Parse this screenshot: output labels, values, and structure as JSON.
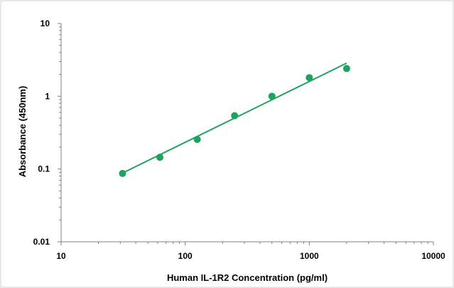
{
  "chart_data": {
    "type": "scatter",
    "title": "",
    "xlabel": "Human IL-1R2 Concentration (pg/ml)",
    "ylabel": "Absorbance (450nm)",
    "x_scale": "log",
    "y_scale": "log",
    "xlim": [
      10,
      10000
    ],
    "ylim": [
      0.01,
      10
    ],
    "x_ticks": [
      "10",
      "100",
      "1000",
      "10000"
    ],
    "y_ticks": [
      "10",
      "1",
      "0.1",
      "0.01"
    ],
    "grid": false,
    "legend": "none",
    "series": [
      {
        "x": [
          31.25,
          62.5,
          125,
          250,
          500,
          1000,
          2000
        ],
        "y": [
          0.087,
          0.145,
          0.255,
          0.54,
          1.0,
          1.8,
          2.4
        ]
      }
    ],
    "trendline": {
      "x": [
        31.25,
        2000
      ],
      "y": [
        0.088,
        2.85
      ]
    },
    "colors": {
      "marker": "#1ea35e",
      "line": "#1ea35e",
      "axis": "#808080",
      "frame": "#d0d0d0"
    }
  }
}
